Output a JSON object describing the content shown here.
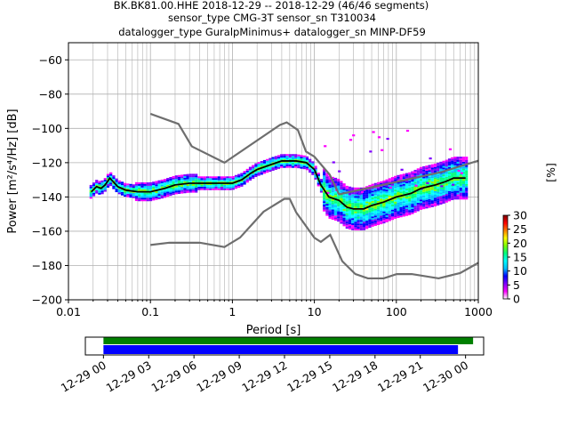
{
  "header": {
    "title_line1": "BK.BK81.00.HHE   2018-12-29 -- 2018-12-29  (46/46 segments)",
    "title_line2": "sensor_type CMG-3T sensor_sn T310034",
    "title_line3": "datalogger_type GuralpMinimus+ datalogger_sn MINP-DF59"
  },
  "chart_data": [
    {
      "type": "heatmap",
      "xlabel": "Period [s]",
      "ylabel": "Power [m²/s⁴/Hz] [dB]",
      "xscale": "log",
      "xlim": [
        0.01,
        1000
      ],
      "ylim": [
        -200,
        -50
      ],
      "grid": true,
      "x_ticks": [
        "0.01",
        "0.1",
        "1",
        "10",
        "100",
        "1000"
      ],
      "x_tick_values": [
        0.01,
        0.1,
        1,
        10,
        100,
        1000
      ],
      "y_ticks": [
        -60,
        -80,
        -100,
        -120,
        -140,
        -160,
        -180,
        -200
      ],
      "colorbar": {
        "label": "[%]",
        "ticks": [
          0,
          5,
          10,
          15,
          20,
          25,
          30
        ],
        "range": [
          0,
          30
        ],
        "colors": [
          "#ffffff",
          "#ff00ff",
          "#7f00ff",
          "#0000ff",
          "#00bfff",
          "#00ffff",
          "#00ff7f",
          "#7fff00",
          "#ffff00",
          "#ff7f00",
          "#ff0000",
          "#7f0000"
        ]
      },
      "series": [
        {
          "name": "",
          "color": "#000000",
          "x": [
            0.019,
            0.022,
            0.025,
            0.028,
            0.032,
            0.035,
            0.04,
            0.05,
            0.07,
            0.1,
            0.15,
            0.2,
            0.3,
            0.5,
            0.8,
            1,
            1.3,
            1.7,
            2,
            3,
            4,
            5,
            6,
            8,
            10,
            12,
            15,
            20,
            25,
            30,
            40,
            50,
            70,
            100,
            150,
            200,
            300,
            400,
            500,
            700
          ],
          "y": [
            -137,
            -134,
            -135,
            -133,
            -129,
            -131,
            -134,
            -136,
            -137,
            -137,
            -135,
            -133,
            -132,
            -132,
            -132,
            -132,
            -130,
            -126,
            -124,
            -121,
            -119,
            -119,
            -119,
            -120,
            -124,
            -133,
            -140,
            -142,
            -146,
            -147,
            -147,
            -145,
            -143,
            -140,
            -138,
            -135,
            -133,
            -131,
            -129,
            -129
          ]
        }
      ],
      "noise_models": [
        {
          "name": "",
          "color": "#6e6e6e",
          "x": [
            0.1,
            0.22,
            0.32,
            0.8,
            3.8,
            4.6,
            6.3,
            7.9,
            10,
            15.4,
            20,
            354.8,
            10000
          ],
          "y": [
            -91.5,
            -97.4,
            -110.5,
            -120,
            -98,
            -96.5,
            -101,
            -113.5,
            -116.5,
            -127,
            -138.5,
            -125.5,
            -104
          ]
        },
        {
          "name": "",
          "color": "#6e6e6e",
          "x": [
            0.1,
            0.17,
            0.4,
            0.8,
            1.24,
            2.4,
            4.3,
            5,
            6,
            10,
            12,
            15.6,
            21.9,
            31.6,
            45,
            70,
            101,
            154,
            328,
            600,
            10000
          ],
          "y": [
            -168,
            -166.7,
            -166.7,
            -169.2,
            -163.7,
            -148.6,
            -141.1,
            -141.1,
            -149,
            -163.8,
            -166.2,
            -162.1,
            -177.5,
            -185,
            -187.5,
            -187.5,
            -185,
            -185,
            -187.5,
            -184.4,
            -151.5
          ]
        }
      ]
    },
    {
      "type": "bar",
      "x_ticks": [
        "12-29 00",
        "12-29 03",
        "12-29 06",
        "12-29 09",
        "12-29 12",
        "12-29 15",
        "12-29 18",
        "12-29 21",
        "12-30 00"
      ],
      "x_tick_hours": [
        0,
        3,
        6,
        9,
        12,
        15,
        18,
        21,
        24
      ],
      "xlim_hours": [
        -1.2,
        25.2
      ],
      "series": [
        {
          "name": "",
          "color": "#008000",
          "start_hour": 0,
          "end_hour": 24.5
        },
        {
          "name": "",
          "color": "#0000ff",
          "start_hour": 0,
          "end_hour": 23.5
        }
      ]
    }
  ]
}
